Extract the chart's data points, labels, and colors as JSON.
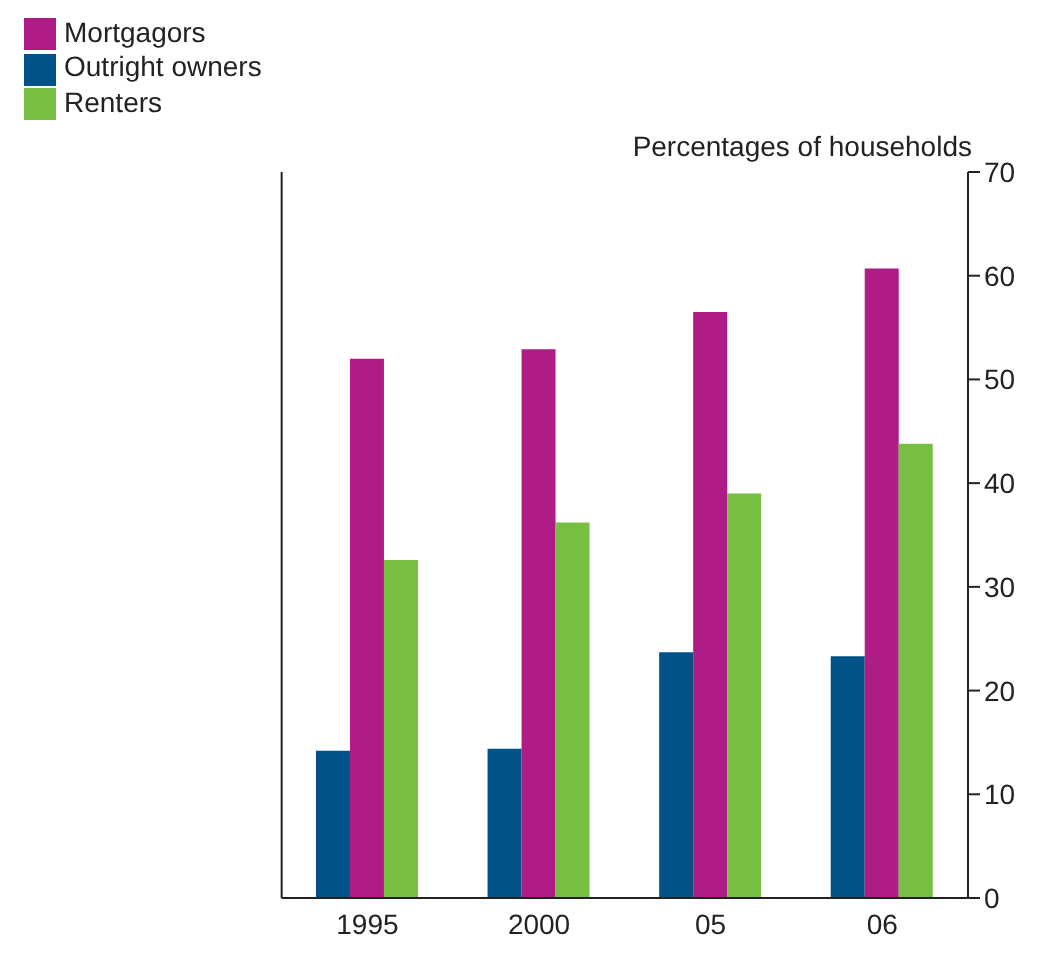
{
  "chart_data": {
    "type": "bar",
    "categories": [
      "1995",
      "2000",
      "05",
      "06"
    ],
    "series": [
      {
        "name": "Outright owners",
        "color": "#005289",
        "values": [
          14.2,
          14.4,
          23.7,
          23.3
        ]
      },
      {
        "name": "Mortgagors",
        "color": "#b01c85",
        "values": [
          52.0,
          52.9,
          56.5,
          60.7
        ]
      },
      {
        "name": "Renters",
        "color": "#76bf43",
        "values": [
          32.6,
          36.2,
          39.0,
          43.8
        ]
      }
    ],
    "ylabel": "Percentages of households",
    "ylim": [
      0,
      70
    ],
    "yticks": [
      0,
      10,
      20,
      30,
      40,
      50,
      60,
      70
    ],
    "grid": false,
    "legend": "top left"
  }
}
